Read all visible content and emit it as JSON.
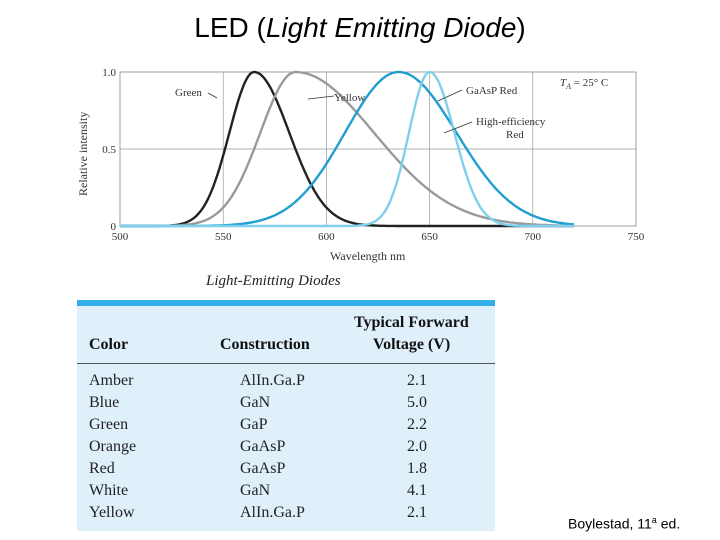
{
  "title": {
    "prefix": "LED (",
    "italic": "Light Emitting Diode",
    "suffix": ")"
  },
  "chart_data": {
    "type": "line",
    "xlabel": "Wavelength  nm",
    "ylabel": "Relative intensity",
    "xlim": [
      500,
      750
    ],
    "ylim": [
      0,
      1.0
    ],
    "x_ticks": [
      "500",
      "550",
      "600",
      "650",
      "700",
      "750"
    ],
    "y_ticks": [
      "0",
      "0.5",
      "1.0"
    ],
    "grid": true,
    "annotation": "T_A = 25° C",
    "series": [
      {
        "name": "Green",
        "color": "#222222",
        "peak": 565,
        "width_left": 12,
        "width_right": 17
      },
      {
        "name": "Yellow",
        "color": "#9a9a9a",
        "peak": 585,
        "width_left": 17,
        "width_right": 38
      },
      {
        "name": "GaAsP Red",
        "color": "#1f9fcf",
        "peak": 635,
        "width_left": 26,
        "width_right": 28
      },
      {
        "name": "High-efficiency Red",
        "color": "#7fd0ec",
        "peak": 650,
        "width_left": 10,
        "width_right": 12
      }
    ],
    "labels": {
      "green": "Green",
      "yellow": "Yellow",
      "gaasp": "GaAsP Red",
      "high1": "High-efficiency",
      "high2": "Red",
      "ta_sub": "A",
      "ta_rest": " = 25° C"
    }
  },
  "table": {
    "caption": "Light-Emitting Diodes",
    "headers": {
      "color": "Color",
      "construction": "Construction",
      "voltage_line1": "Typical Forward",
      "voltage_line2": "Voltage (V)"
    },
    "rows": [
      {
        "color": "Amber",
        "construction": "AlIn.Ga.P",
        "voltage": "2.1"
      },
      {
        "color": "Blue",
        "construction": "GaN",
        "voltage": "5.0"
      },
      {
        "color": "Green",
        "construction": "GaP",
        "voltage": "2.2"
      },
      {
        "color": "Orange",
        "construction": "GaAsP",
        "voltage": "2.0"
      },
      {
        "color": "Red",
        "construction": "GaAsP",
        "voltage": "1.8"
      },
      {
        "color": "White",
        "construction": "GaN",
        "voltage": "4.1"
      },
      {
        "color": "Yellow",
        "construction": "AlIn.Ga.P",
        "voltage": "2.1"
      }
    ]
  },
  "credit": {
    "text": "Boylestad, 11",
    "sup": "a",
    "suffix": " ed."
  }
}
